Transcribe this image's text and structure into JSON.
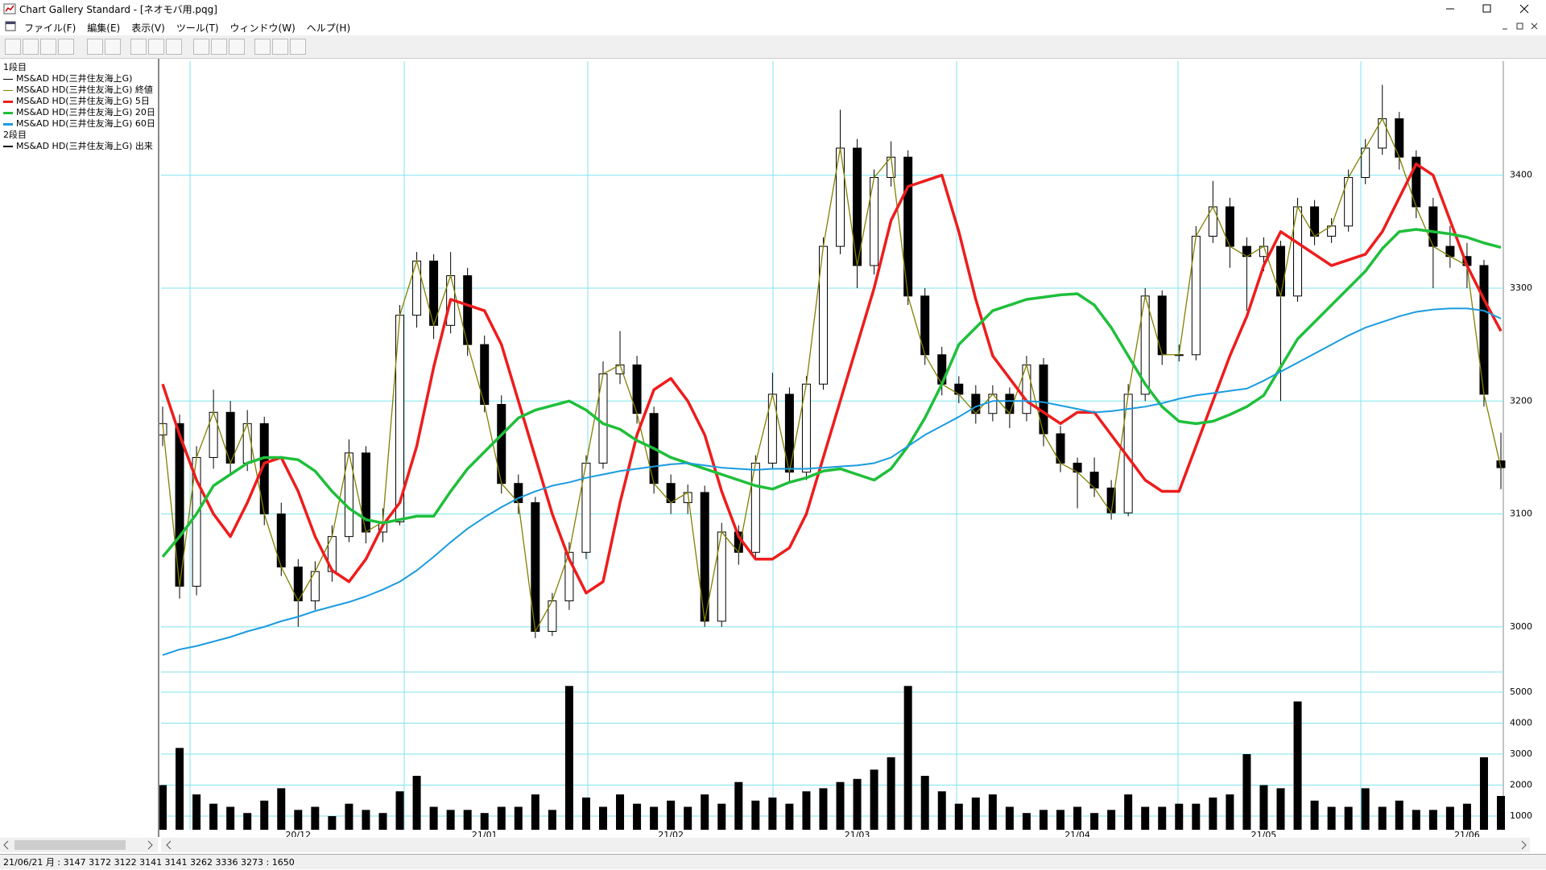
{
  "window": {
    "title": "Chart Gallery Standard - [ネオモバ用.pqg]",
    "menu": [
      "ファイル(F)",
      "編集(E)",
      "表示(V)",
      "ツール(T)",
      "ウィンドウ(W)",
      "ヘルプ(H)"
    ]
  },
  "legend": {
    "pane1": "1段目",
    "pane2": "2段目"
  },
  "status": "21/06/21 月 : 3147 3172 3122 3141  3141 3262 3336 3273 : 1650",
  "chart_data": {
    "type": "candlestick",
    "name": "MS&AD HD(三井住友海上G)",
    "grid": true,
    "categories": [
      null,
      null,
      null,
      null,
      null,
      null,
      null,
      null,
      "20/12",
      null,
      null,
      null,
      null,
      null,
      null,
      null,
      null,
      null,
      null,
      "21/01",
      null,
      null,
      null,
      null,
      null,
      null,
      null,
      null,
      null,
      null,
      "21/02",
      null,
      null,
      null,
      null,
      null,
      null,
      null,
      null,
      null,
      null,
      "21/03",
      null,
      null,
      null,
      null,
      null,
      null,
      null,
      null,
      null,
      null,
      null,
      null,
      "21/04",
      null,
      null,
      null,
      null,
      null,
      null,
      null,
      null,
      null,
      null,
      "21/05",
      null,
      null,
      null,
      null,
      null,
      null,
      null,
      null,
      null,
      null,
      null,
      "21/06",
      null,
      null
    ],
    "ohlc": [
      [
        3170,
        3195,
        3160,
        3180
      ],
      [
        3180,
        3188,
        3025,
        3036
      ],
      [
        3036,
        3160,
        3028,
        3150
      ],
      [
        3150,
        3210,
        3140,
        3190
      ],
      [
        3190,
        3200,
        3135,
        3145
      ],
      [
        3145,
        3192,
        3138,
        3180
      ],
      [
        3180,
        3186,
        3090,
        3100
      ],
      [
        3100,
        3110,
        3045,
        3053
      ],
      [
        3053,
        3060,
        3000,
        3023
      ],
      [
        3023,
        3058,
        3015,
        3049
      ],
      [
        3049,
        3090,
        3040,
        3080
      ],
      [
        3080,
        3166,
        3075,
        3154
      ],
      [
        3154,
        3160,
        3074,
        3084
      ],
      [
        3084,
        3105,
        3075,
        3093
      ],
      [
        3093,
        3285,
        3090,
        3276
      ],
      [
        3276,
        3332,
        3265,
        3324
      ],
      [
        3324,
        3330,
        3255,
        3267
      ],
      [
        3267,
        3332,
        3260,
        3311
      ],
      [
        3311,
        3318,
        3240,
        3250
      ],
      [
        3250,
        3258,
        3190,
        3197
      ],
      [
        3197,
        3205,
        3118,
        3127
      ],
      [
        3127,
        3135,
        3100,
        3110
      ],
      [
        3110,
        3115,
        2990,
        2996
      ],
      [
        2996,
        3030,
        2992,
        3023
      ],
      [
        3023,
        3075,
        3015,
        3066
      ],
      [
        3066,
        3152,
        3060,
        3145
      ],
      [
        3145,
        3235,
        3140,
        3224
      ],
      [
        3224,
        3262,
        3215,
        3232
      ],
      [
        3232,
        3240,
        3180,
        3189
      ],
      [
        3189,
        3195,
        3118,
        3127
      ],
      [
        3127,
        3135,
        3100,
        3110
      ],
      [
        3110,
        3126,
        3100,
        3119
      ],
      [
        3119,
        3125,
        3000,
        3005
      ],
      [
        3005,
        3092,
        3000,
        3084
      ],
      [
        3084,
        3090,
        3055,
        3066
      ],
      [
        3066,
        3152,
        3060,
        3145
      ],
      [
        3145,
        3225,
        3140,
        3206
      ],
      [
        3206,
        3212,
        3128,
        3137
      ],
      [
        3137,
        3222,
        3130,
        3215
      ],
      [
        3215,
        3345,
        3210,
        3337
      ],
      [
        3337,
        3458,
        3330,
        3424
      ],
      [
        3424,
        3432,
        3300,
        3320
      ],
      [
        3320,
        3405,
        3312,
        3398
      ],
      [
        3398,
        3430,
        3390,
        3416
      ],
      [
        3416,
        3422,
        3285,
        3293
      ],
      [
        3293,
        3300,
        3232,
        3241
      ],
      [
        3241,
        3248,
        3205,
        3215
      ],
      [
        3215,
        3222,
        3198,
        3206
      ],
      [
        3206,
        3214,
        3180,
        3189
      ],
      [
        3189,
        3214,
        3182,
        3206
      ],
      [
        3206,
        3212,
        3176,
        3189
      ],
      [
        3189,
        3240,
        3182,
        3232
      ],
      [
        3232,
        3238,
        3160,
        3171
      ],
      [
        3171,
        3178,
        3137,
        3145
      ],
      [
        3145,
        3150,
        3105,
        3137
      ],
      [
        3137,
        3150,
        3115,
        3123
      ],
      [
        3123,
        3130,
        3095,
        3101
      ],
      [
        3101,
        3215,
        3098,
        3206
      ],
      [
        3206,
        3300,
        3200,
        3293
      ],
      [
        3293,
        3298,
        3232,
        3241
      ],
      [
        3241,
        3250,
        3235,
        3241
      ],
      [
        3241,
        3355,
        3236,
        3346
      ],
      [
        3346,
        3395,
        3340,
        3372
      ],
      [
        3372,
        3380,
        3318,
        3337
      ],
      [
        3337,
        3345,
        3280,
        3328
      ],
      [
        3328,
        3345,
        3315,
        3337
      ],
      [
        3337,
        3342,
        3200,
        3293
      ],
      [
        3293,
        3380,
        3288,
        3372
      ],
      [
        3372,
        3378,
        3338,
        3346
      ],
      [
        3346,
        3362,
        3340,
        3355
      ],
      [
        3355,
        3405,
        3350,
        3398
      ],
      [
        3398,
        3432,
        3392,
        3424
      ],
      [
        3424,
        3480,
        3418,
        3450
      ],
      [
        3450,
        3456,
        3405,
        3416
      ],
      [
        3416,
        3422,
        3362,
        3372
      ],
      [
        3372,
        3380,
        3300,
        3337
      ],
      [
        3337,
        3355,
        3318,
        3328
      ],
      [
        3328,
        3340,
        3300,
        3320
      ],
      [
        3320,
        3325,
        3195,
        3206
      ],
      [
        3147,
        3172,
        3122,
        3141
      ]
    ],
    "close_line": {
      "name": "MS&AD HD(三井住友海上G) 終値",
      "color": "#808000"
    },
    "ylim": [
      2960,
      3501
    ],
    "yticks": [
      3000,
      3100,
      3200,
      3300,
      3400
    ],
    "series": [
      {
        "name": "MS&AD HD(三井住友海上G) 5日",
        "color": "#ee1c1c",
        "values": [
          3215,
          3170,
          3130,
          3100,
          3080,
          3110,
          3145,
          3150,
          3120,
          3080,
          3050,
          3040,
          3060,
          3090,
          3110,
          3160,
          3230,
          3290,
          3285,
          3280,
          3250,
          3200,
          3150,
          3100,
          3060,
          3030,
          3040,
          3110,
          3170,
          3210,
          3220,
          3200,
          3170,
          3120,
          3080,
          3060,
          3060,
          3070,
          3100,
          3150,
          3200,
          3250,
          3300,
          3360,
          3390,
          3395,
          3400,
          3350,
          3290,
          3240,
          3220,
          3200,
          3190,
          3180,
          3190,
          3190,
          3170,
          3150,
          3130,
          3120,
          3120,
          3160,
          3200,
          3240,
          3275,
          3320,
          3350,
          3340,
          3330,
          3320,
          3325,
          3330,
          3350,
          3380,
          3410,
          3400,
          3360,
          3320,
          3290,
          3262
        ]
      },
      {
        "name": "MS&AD HD(三井住友海上G) 20日",
        "color": "#1fbf3a",
        "values": [
          3062,
          3080,
          3100,
          3125,
          3135,
          3145,
          3150,
          3150,
          3148,
          3138,
          3120,
          3105,
          3095,
          3092,
          3095,
          3098,
          3098,
          3120,
          3140,
          3155,
          3170,
          3185,
          3192,
          3196,
          3200,
          3192,
          3180,
          3175,
          3165,
          3158,
          3150,
          3145,
          3140,
          3135,
          3130,
          3125,
          3122,
          3128,
          3132,
          3138,
          3140,
          3135,
          3130,
          3140,
          3160,
          3185,
          3215,
          3250,
          3265,
          3280,
          3285,
          3290,
          3292,
          3294,
          3295,
          3285,
          3265,
          3240,
          3215,
          3195,
          3182,
          3180,
          3182,
          3188,
          3195,
          3205,
          3230,
          3255,
          3270,
          3285,
          3300,
          3315,
          3335,
          3350,
          3352,
          3350,
          3348,
          3345,
          3340,
          3336
        ]
      },
      {
        "name": "MS&AD HD(三井住友海上G) 60日",
        "color": "#1a9be0",
        "values": [
          2975,
          2980,
          2983,
          2987,
          2991,
          2996,
          3000,
          3005,
          3009,
          3014,
          3018,
          3022,
          3027,
          3033,
          3040,
          3050,
          3062,
          3075,
          3087,
          3097,
          3106,
          3114,
          3120,
          3125,
          3128,
          3132,
          3135,
          3138,
          3140,
          3142,
          3144,
          3145,
          3143,
          3141,
          3140,
          3139,
          3140,
          3140,
          3140,
          3141,
          3142,
          3143,
          3145,
          3150,
          3160,
          3170,
          3178,
          3186,
          3195,
          3200,
          3200,
          3200,
          3199,
          3196,
          3193,
          3190,
          3191,
          3193,
          3195,
          3198,
          3202,
          3205,
          3207,
          3209,
          3211,
          3218,
          3226,
          3234,
          3242,
          3250,
          3258,
          3265,
          3270,
          3275,
          3279,
          3281,
          3282,
          3282,
          3280,
          3273
        ]
      }
    ],
    "volume": {
      "name": "MS&AD HD(三井住友海上G) 出来",
      "color": "#000000",
      "ylim": [
        560,
        5650
      ],
      "yticks": [
        1000,
        2000,
        3000,
        4000,
        5000
      ],
      "values": [
        2000,
        3200,
        1700,
        1400,
        1300,
        1100,
        1500,
        1900,
        1200,
        1300,
        1000,
        1400,
        1200,
        1100,
        1800,
        2300,
        1300,
        1200,
        1200,
        1100,
        1300,
        1300,
        1700,
        1200,
        5200,
        1600,
        1300,
        1700,
        1400,
        1300,
        1500,
        1300,
        1700,
        1400,
        2100,
        1500,
        1600,
        1400,
        1800,
        1900,
        2100,
        2200,
        2500,
        2900,
        5200,
        2300,
        1800,
        1400,
        1600,
        1700,
        1300,
        1100,
        1200,
        1200,
        1300,
        1100,
        1200,
        1700,
        1300,
        1300,
        1400,
        1400,
        1600,
        1700,
        3000,
        2000,
        1900,
        4700,
        1500,
        1300,
        1300,
        1900,
        1300,
        1500,
        1200,
        1200,
        1300,
        1400,
        2900,
        1650
      ]
    }
  }
}
